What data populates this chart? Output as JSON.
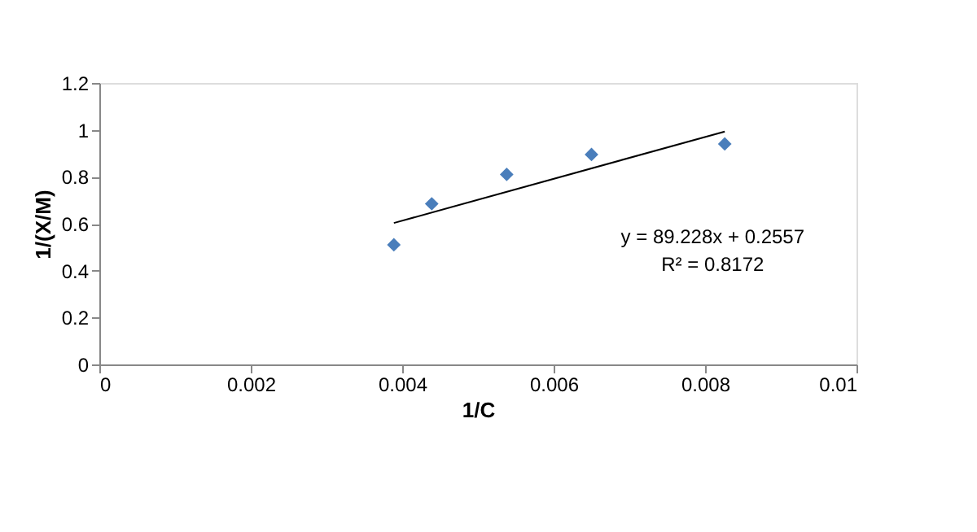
{
  "chart_data": {
    "type": "scatter",
    "xlabel": "1/C",
    "ylabel": "1/(X/M)",
    "x": [
      0.00389,
      0.00439,
      0.00538,
      0.0065,
      0.00826
    ],
    "series": [
      {
        "color": "#4a7ebb",
        "marker": "diamond",
        "values": [
          0.51,
          0.685,
          0.81,
          0.895,
          0.94
        ]
      },
      {
        "type": "line",
        "color": "#000000",
        "x": [
          0.00389,
          0.00826
        ],
        "values": [
          0.603,
          0.993
        ],
        "line_style": "solid"
      }
    ],
    "xlim": [
      0,
      0.01
    ],
    "xticks": [
      0,
      0.002,
      0.004,
      0.006,
      0.008,
      0.01
    ],
    "ylim": [
      0,
      1.2
    ],
    "yticks": [
      0,
      0.2,
      0.4,
      0.6,
      0.8,
      1,
      1.2
    ],
    "grid": false,
    "annotations": [
      "y = 89.228x + 0.2557",
      "R² = 0.8172"
    ]
  }
}
